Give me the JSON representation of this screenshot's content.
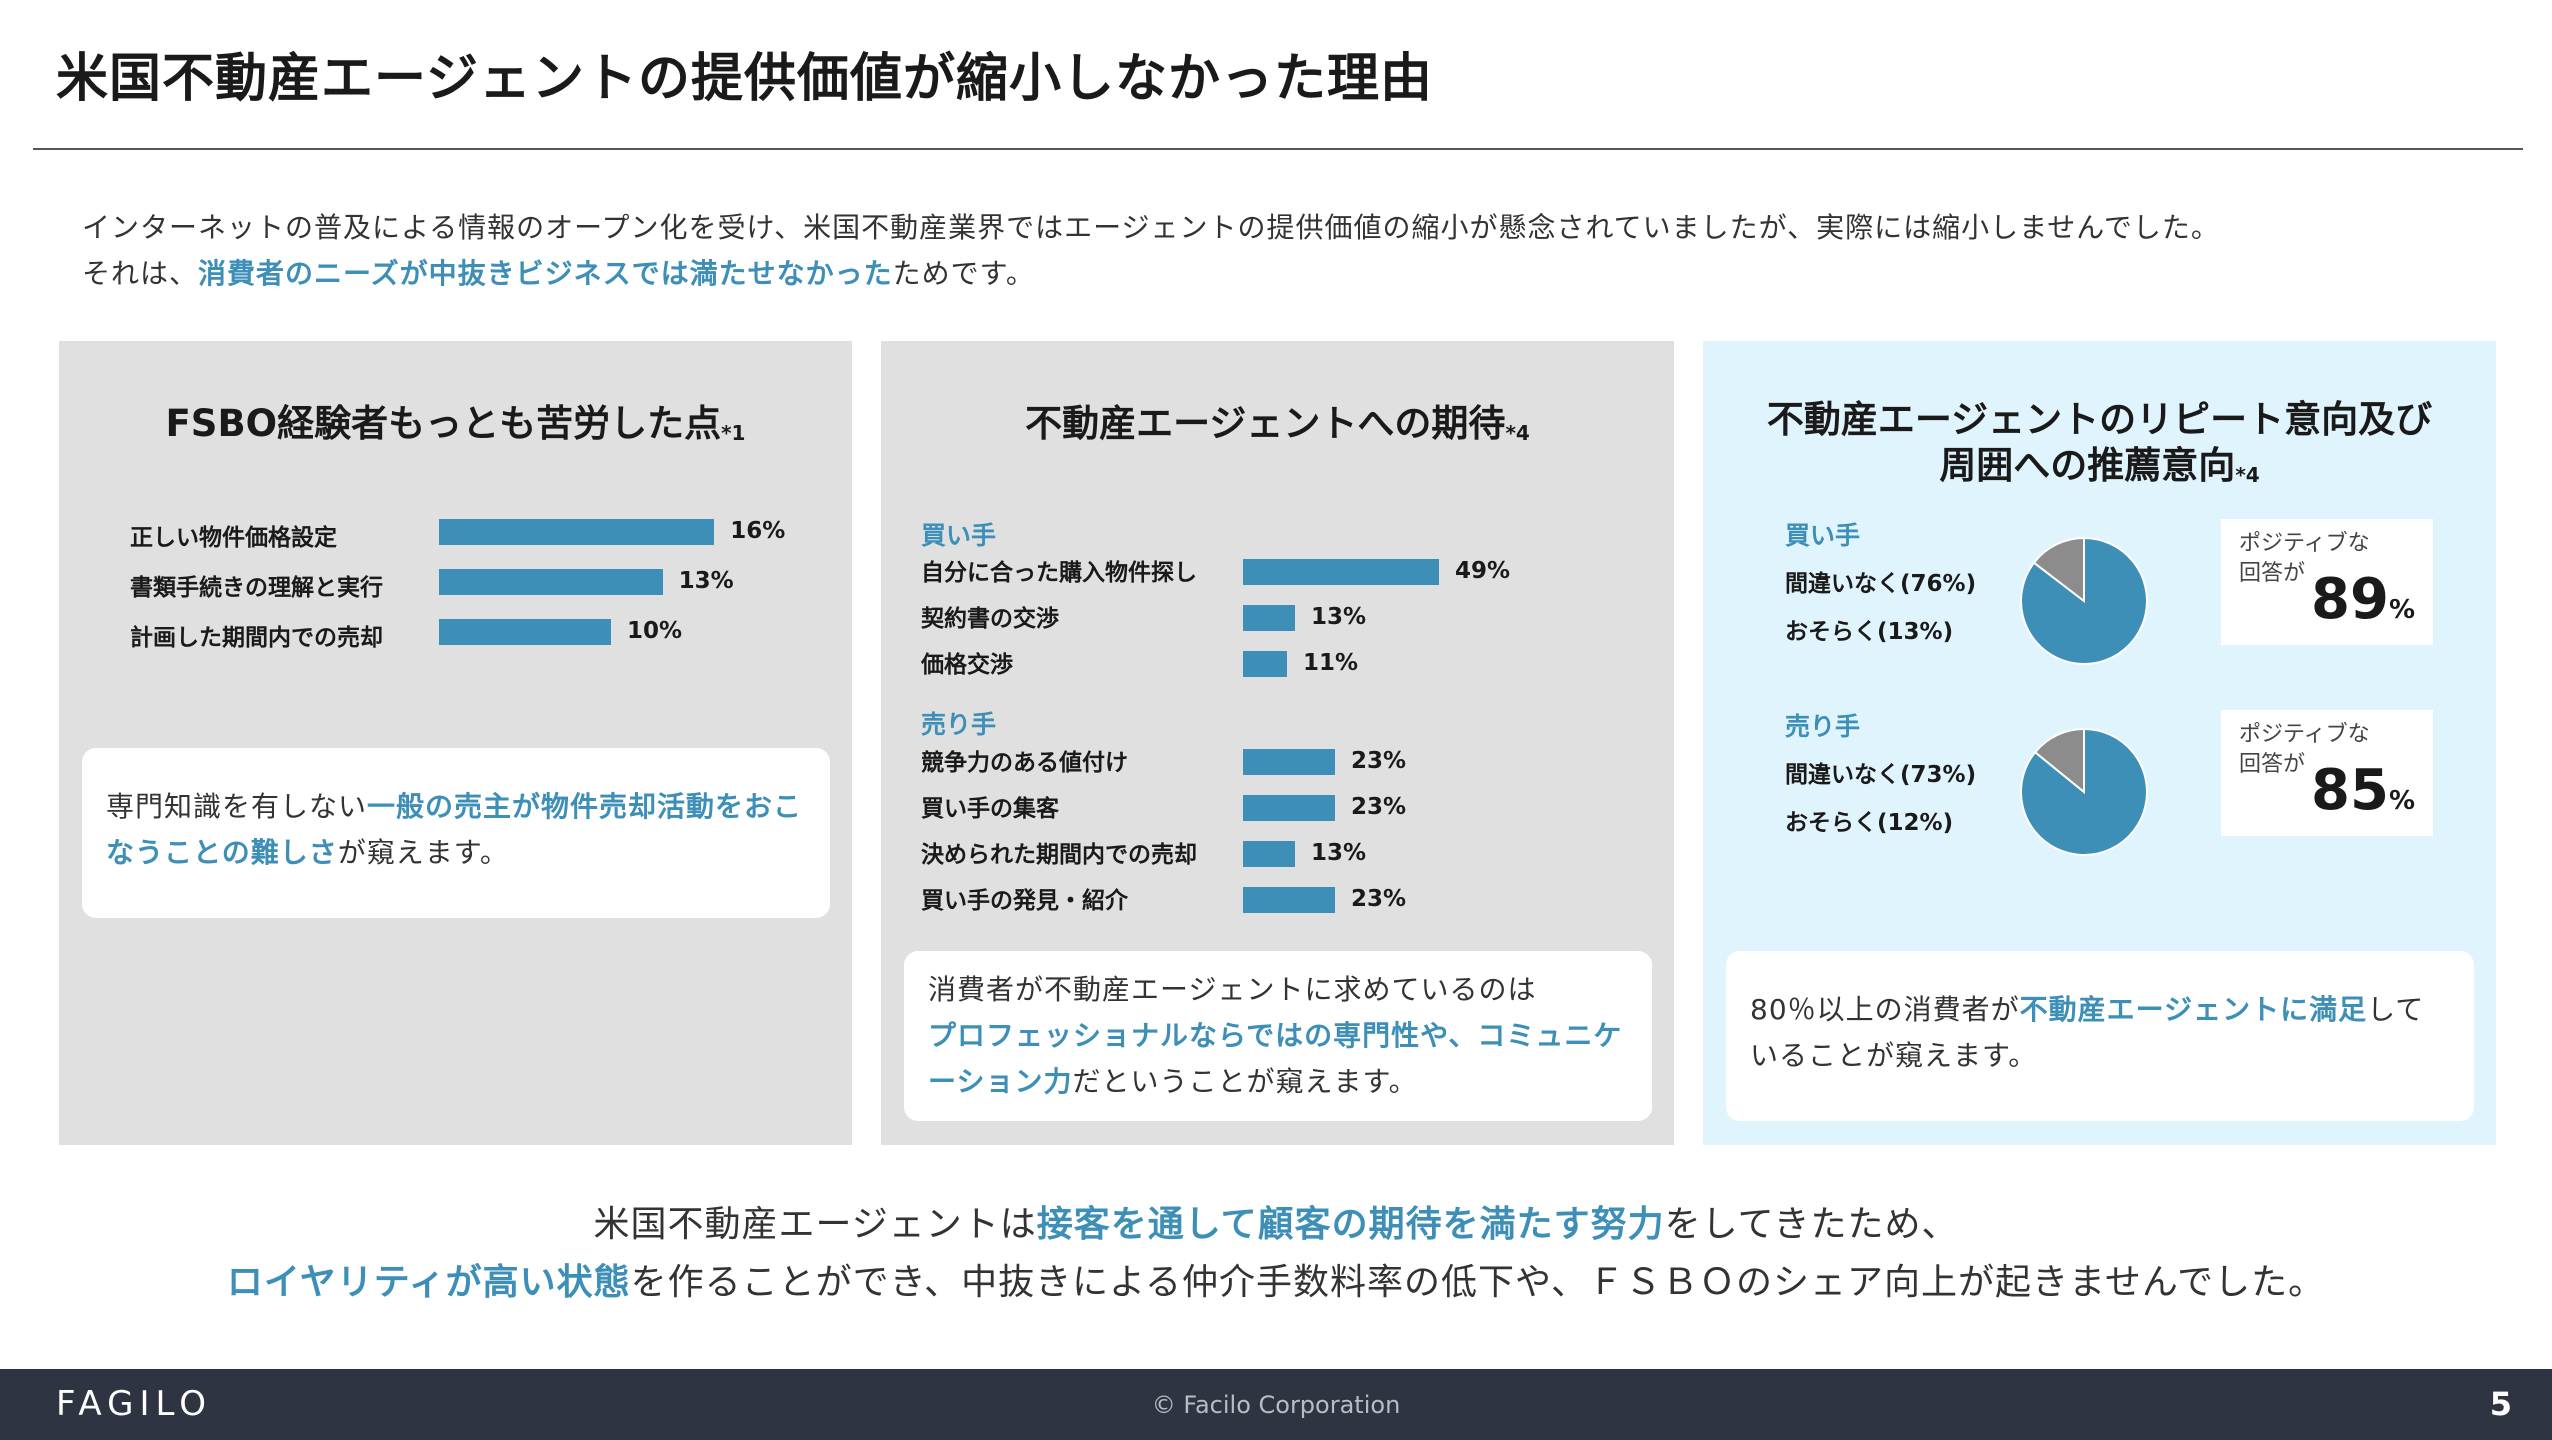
{
  "title": "米国不動産エージェントの提供価値が縮小しなかった理由",
  "intro": {
    "line1": "インターネットの普及による情報のオープン化を受け、米国不動産業界ではエージェントの提供価値の縮小が懸念されていましたが、実際には縮小しませんでした。",
    "line2_prefix": "それは、",
    "line2_highlight": "消費者のニーズが中抜きビジネスでは満たせなかった",
    "line2_suffix": "ためです。"
  },
  "colors": {
    "accent": "#3d8fb8",
    "panel_gray": "#e0e0e0",
    "panel_blue": "#e0f4fd",
    "pie_gray": "#8c8c8c",
    "footer": "#2e3441"
  },
  "panel1": {
    "title": "FSBO経験者もっとも苦労した点",
    "note": "*1",
    "chart_data": {
      "type": "bar",
      "categories": [
        "正しい物件価格設定",
        "書類手続きの理解と実行",
        "計画した期間内での売却"
      ],
      "values": [
        16,
        13,
        10
      ],
      "labels": [
        "16%",
        "13%",
        "10%"
      ]
    },
    "card": {
      "prefix": "専門知識を有しない",
      "highlight": "一般の売主が物件売却活動をおこなうことの難しさ",
      "suffix": "が窺えます。"
    }
  },
  "panel2": {
    "title": "不動産エージェントへの期待",
    "note": "*4",
    "chart_data": {
      "type": "bar",
      "groups": [
        {
          "name": "買い手",
          "categories": [
            "自分に合った購入物件探し",
            "契約書の交渉",
            "価格交渉"
          ],
          "values": [
            49,
            13,
            11
          ],
          "labels": [
            "49%",
            "13%",
            "11%"
          ]
        },
        {
          "name": "売り手",
          "categories": [
            "競争力のある値付け",
            "買い手の集客",
            "決められた期間内での売却",
            "買い手の発見・紹介"
          ],
          "values": [
            23,
            23,
            13,
            23
          ],
          "labels": [
            "23%",
            "23%",
            "13%",
            "23%"
          ]
        }
      ]
    },
    "card": {
      "prefix": "消費者が不動産エージェントに求めているのは",
      "highlight": "プロフェッショナルならではの専門性や、コミュニケーション力",
      "suffix": "だということが窺えます。"
    }
  },
  "panel3": {
    "title_line1": "不動産エージェントのリピート意向及び",
    "title_line2": "周囲への推薦意向",
    "note": "*4",
    "chart_data": {
      "type": "pie",
      "groups": [
        {
          "name": "買い手",
          "slices": [
            {
              "label": "間違いなく(76%)",
              "value": 76
            },
            {
              "label": "おそらく(13%)",
              "value": 13
            }
          ],
          "positive_label": "ポジティブな回答が",
          "positive_value": "89",
          "unit": "%"
        },
        {
          "name": "売り手",
          "slices": [
            {
              "label": "間違いなく(73%)",
              "value": 73
            },
            {
              "label": "おそらく(12%)",
              "value": 12
            }
          ],
          "positive_label": "ポジティブな回答が",
          "positive_value": "85",
          "unit": "%"
        }
      ]
    },
    "positive_l1": "ポジティブな",
    "positive_l2": "回答が",
    "card": {
      "prefix": "80％以上の消費者が",
      "highlight": "不動産エージェントに満足",
      "suffix": "していることが窺えます。"
    }
  },
  "conclusion": {
    "l1_prefix": "米国不動産エージェントは",
    "l1_highlight": "接客を通して顧客の期待を満たす努力",
    "l1_suffix": "をしてきたため、",
    "l2_highlight": "ロイヤリティが高い状態",
    "l2_suffix": "を作ることができ、中抜きによる仲介手数料率の低下や、ＦＳＢＯのシェア向上が起きませんでした。"
  },
  "footer": {
    "logo": "FAGILO",
    "copyright": "© Facilo Corporation",
    "page": "5"
  }
}
